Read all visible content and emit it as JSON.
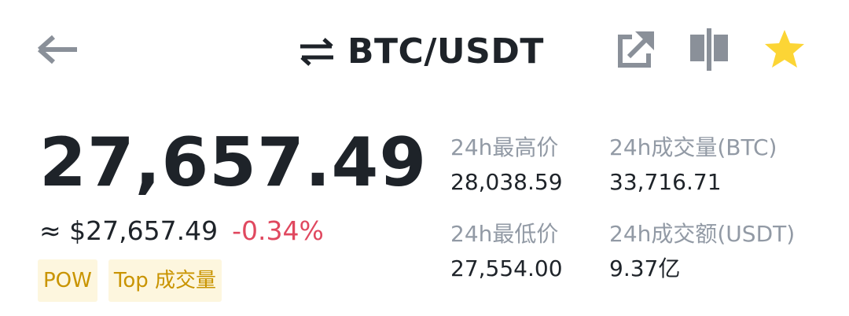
{
  "header": {
    "back_icon": "arrow-left-icon",
    "swap_icon": "swap-arrows-icon",
    "pair": "BTC/USDT",
    "share_icon": "share-external-icon",
    "chart_icon": "candlestick-icon",
    "favorite_icon": "star-icon",
    "icon_color": "#8a9099",
    "favorite_color": "#fcd535"
  },
  "price": {
    "last": "27,657.49",
    "fiat": "≈ $27,657.49",
    "change": "-0.34%",
    "change_color": "#e0485f"
  },
  "tags": [
    "POW",
    "Top 成交量"
  ],
  "stats": [
    {
      "label": "24h最高价",
      "value": "28,038.59"
    },
    {
      "label": "24h成交量(BTC)",
      "value": "33,716.71"
    },
    {
      "label": "24h最低价",
      "value": "27,554.00"
    },
    {
      "label": "24h成交额(USDT)",
      "value": "9.37亿"
    }
  ]
}
